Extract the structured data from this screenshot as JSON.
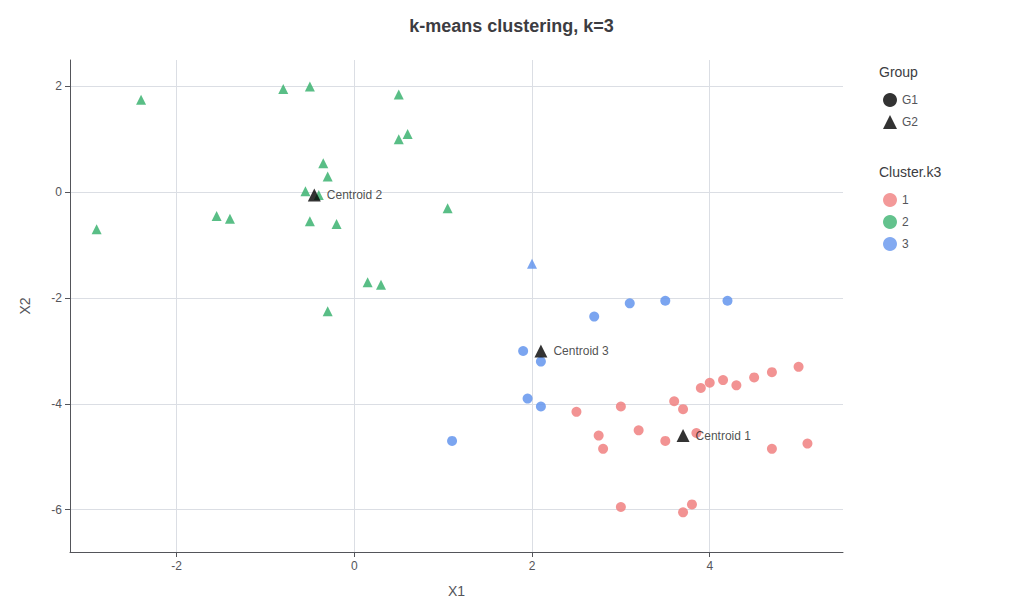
{
  "chart_data": {
    "type": "scatter",
    "title": "k-means clustering, k=3",
    "xlabel": "X1",
    "ylabel": "X2",
    "xlim": [
      -3.2,
      5.5
    ],
    "ylim": [
      -6.8,
      2.5
    ],
    "xticks": [
      -2,
      0,
      2,
      4
    ],
    "yticks": [
      -6,
      -4,
      -2,
      0,
      2
    ],
    "grid": true,
    "group_legend": {
      "title": "Group",
      "entries": [
        {
          "name": "G1",
          "marker": "circle",
          "color": "black"
        },
        {
          "name": "G2",
          "marker": "triangle",
          "color": "black"
        }
      ]
    },
    "cluster_legend": {
      "title": "Cluster.k3",
      "entries": [
        {
          "name": "1",
          "marker": "circle",
          "color": "#F08080"
        },
        {
          "name": "2",
          "marker": "circle",
          "color": "#3CB371"
        },
        {
          "name": "3",
          "marker": "circle",
          "color": "#6495ED"
        }
      ]
    },
    "points": [
      {
        "x": -2.4,
        "y": 1.75,
        "cluster": "2",
        "group": "G2"
      },
      {
        "x": -0.8,
        "y": 1.95,
        "cluster": "2",
        "group": "G2"
      },
      {
        "x": -0.5,
        "y": 2.0,
        "cluster": "2",
        "group": "G2"
      },
      {
        "x": 0.5,
        "y": 1.85,
        "cluster": "2",
        "group": "G2"
      },
      {
        "x": 0.6,
        "y": 1.1,
        "cluster": "2",
        "group": "G2"
      },
      {
        "x": 0.5,
        "y": 1.0,
        "cluster": "2",
        "group": "G2"
      },
      {
        "x": -0.35,
        "y": 0.55,
        "cluster": "2",
        "group": "G2"
      },
      {
        "x": -0.3,
        "y": 0.3,
        "cluster": "2",
        "group": "G2"
      },
      {
        "x": -0.55,
        "y": 0.02,
        "cluster": "2",
        "group": "G2"
      },
      {
        "x": -0.4,
        "y": -0.05,
        "cluster": "2",
        "group": "G2"
      },
      {
        "x": -1.4,
        "y": -0.5,
        "cluster": "2",
        "group": "G2"
      },
      {
        "x": -1.55,
        "y": -0.45,
        "cluster": "2",
        "group": "G2"
      },
      {
        "x": -0.5,
        "y": -0.55,
        "cluster": "2",
        "group": "G2"
      },
      {
        "x": -0.2,
        "y": -0.6,
        "cluster": "2",
        "group": "G2"
      },
      {
        "x": 0.15,
        "y": -1.7,
        "cluster": "2",
        "group": "G2"
      },
      {
        "x": 0.3,
        "y": -1.75,
        "cluster": "2",
        "group": "G2"
      },
      {
        "x": -2.9,
        "y": -0.7,
        "cluster": "2",
        "group": "G2"
      },
      {
        "x": -0.3,
        "y": -2.25,
        "cluster": "2",
        "group": "G2"
      },
      {
        "x": 1.05,
        "y": -0.3,
        "cluster": "2",
        "group": "G2"
      },
      {
        "x": 2.0,
        "y": -1.35,
        "cluster": "3",
        "group": "G2"
      },
      {
        "x": 1.9,
        "y": -3.0,
        "cluster": "3",
        "group": "G1"
      },
      {
        "x": 2.1,
        "y": -3.2,
        "cluster": "3",
        "group": "G1"
      },
      {
        "x": 1.95,
        "y": -3.9,
        "cluster": "3",
        "group": "G1"
      },
      {
        "x": 2.1,
        "y": -4.05,
        "cluster": "3",
        "group": "G1"
      },
      {
        "x": 2.7,
        "y": -2.35,
        "cluster": "3",
        "group": "G1"
      },
      {
        "x": 3.1,
        "y": -2.1,
        "cluster": "3",
        "group": "G1"
      },
      {
        "x": 3.5,
        "y": -2.05,
        "cluster": "3",
        "group": "G1"
      },
      {
        "x": 4.2,
        "y": -2.05,
        "cluster": "3",
        "group": "G1"
      },
      {
        "x": 1.1,
        "y": -4.7,
        "cluster": "3",
        "group": "G1"
      },
      {
        "x": 2.5,
        "y": -4.15,
        "cluster": "1",
        "group": "G1"
      },
      {
        "x": 2.75,
        "y": -4.6,
        "cluster": "1",
        "group": "G1"
      },
      {
        "x": 2.8,
        "y": -4.85,
        "cluster": "1",
        "group": "G1"
      },
      {
        "x": 3.0,
        "y": -4.05,
        "cluster": "1",
        "group": "G1"
      },
      {
        "x": 3.2,
        "y": -4.5,
        "cluster": "1",
        "group": "G1"
      },
      {
        "x": 3.5,
        "y": -4.7,
        "cluster": "1",
        "group": "G1"
      },
      {
        "x": 3.6,
        "y": -3.95,
        "cluster": "1",
        "group": "G1"
      },
      {
        "x": 3.7,
        "y": -4.1,
        "cluster": "1",
        "group": "G1"
      },
      {
        "x": 3.85,
        "y": -4.55,
        "cluster": "1",
        "group": "G1"
      },
      {
        "x": 3.9,
        "y": -3.7,
        "cluster": "1",
        "group": "G1"
      },
      {
        "x": 4.0,
        "y": -3.6,
        "cluster": "1",
        "group": "G1"
      },
      {
        "x": 4.15,
        "y": -3.55,
        "cluster": "1",
        "group": "G1"
      },
      {
        "x": 4.3,
        "y": -3.65,
        "cluster": "1",
        "group": "G1"
      },
      {
        "x": 4.5,
        "y": -3.5,
        "cluster": "1",
        "group": "G1"
      },
      {
        "x": 4.7,
        "y": -3.4,
        "cluster": "1",
        "group": "G1"
      },
      {
        "x": 4.7,
        "y": -4.85,
        "cluster": "1",
        "group": "G1"
      },
      {
        "x": 5.0,
        "y": -3.3,
        "cluster": "1",
        "group": "G1"
      },
      {
        "x": 5.1,
        "y": -4.75,
        "cluster": "1",
        "group": "G1"
      },
      {
        "x": 3.0,
        "y": -5.95,
        "cluster": "1",
        "group": "G1"
      },
      {
        "x": 3.7,
        "y": -6.05,
        "cluster": "1",
        "group": "G1"
      },
      {
        "x": 3.8,
        "y": -5.9,
        "cluster": "1",
        "group": "G1"
      }
    ],
    "centroids": {
      "color": "black",
      "marker": "triangle",
      "points": [
        {
          "x": 3.7,
          "y": -4.6,
          "label": "Centroid 1"
        },
        {
          "x": -0.45,
          "y": -0.05,
          "label": "Centroid 2"
        },
        {
          "x": 2.1,
          "y": -3.0,
          "label": "Centroid 3"
        }
      ]
    }
  }
}
